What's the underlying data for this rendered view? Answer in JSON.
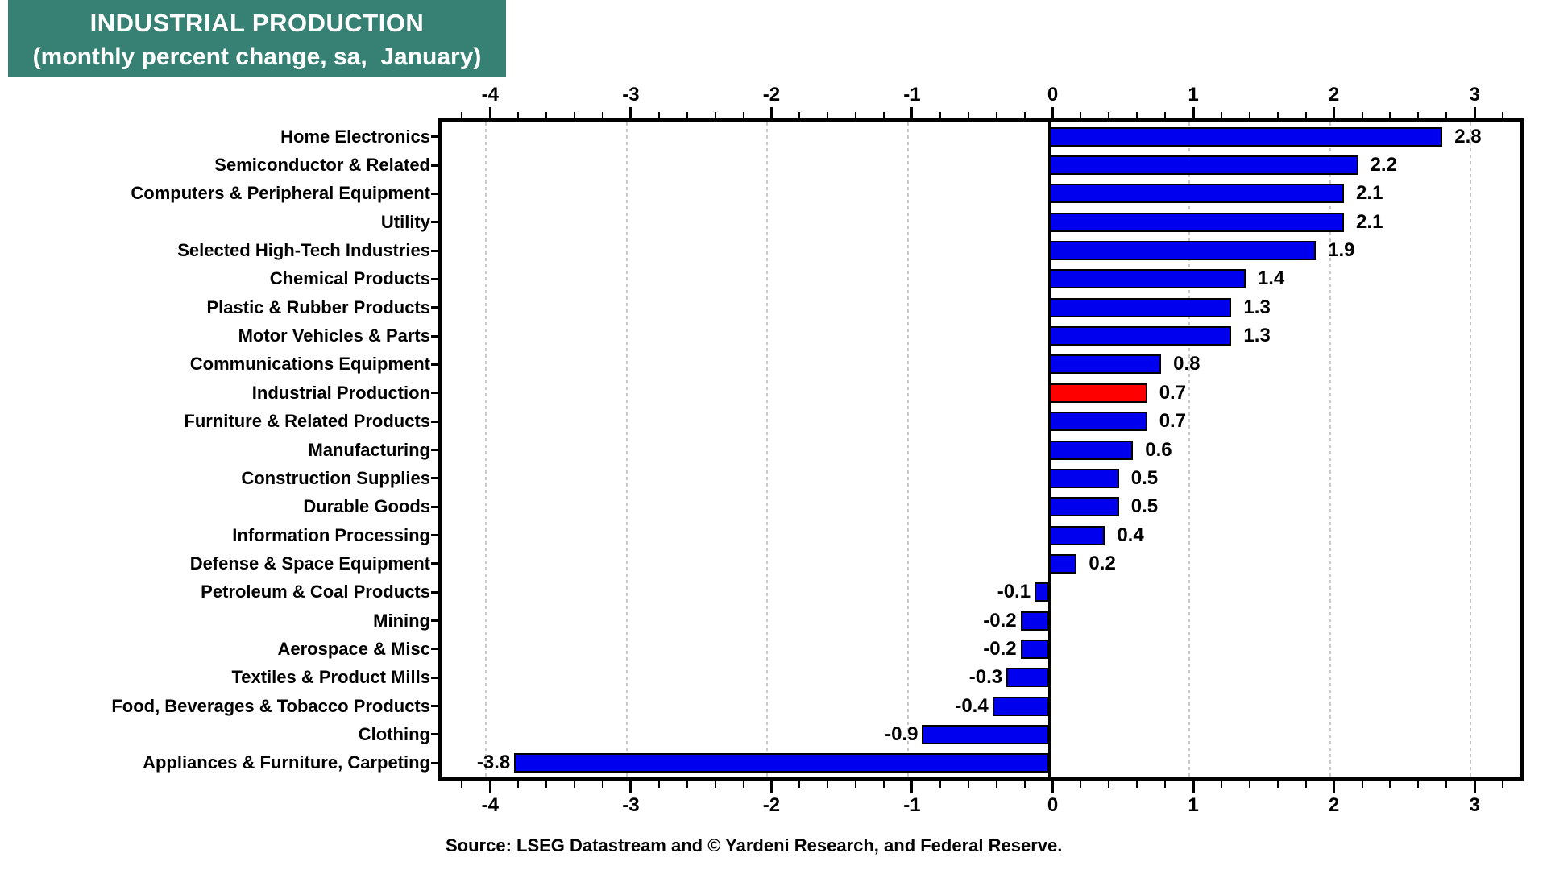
{
  "title": {
    "line1": "INDUSTRIAL PRODUCTION",
    "line2": "(monthly percent change, sa,  January)"
  },
  "source": "Source: LSEG Datastream and © Yardeni Research, and Federal Reserve.",
  "colors": {
    "title_bg": "#368173",
    "title_text": "#ffffff",
    "bar_blue": "#0000ee",
    "bar_highlight_red": "#ff0000",
    "bar_border": "#000000",
    "grid": "#c9c9c9",
    "axis": "#000000"
  },
  "chart_data": {
    "type": "bar",
    "orientation": "horizontal",
    "title": "INDUSTRIAL PRODUCTION",
    "subtitle": "(monthly percent change, sa,  January)",
    "categories": [
      "Home Electronics",
      "Semiconductor & Related",
      "Computers & Peripheral Equipment",
      "Utility",
      "Selected High-Tech Industries",
      "Chemical Products",
      "Plastic & Rubber Products",
      "Motor Vehicles & Parts",
      "Communications Equipment",
      "Industrial Production",
      "Furniture & Related Products",
      "Manufacturing",
      "Construction Supplies",
      "Durable Goods",
      "Information Processing",
      "Defense & Space Equipment",
      "Petroleum & Coal Products",
      "Mining",
      "Aerospace & Misc",
      "Textiles & Product Mills",
      "Food, Beverages & Tobacco Products",
      "Clothing",
      "Appliances & Furniture, Carpeting"
    ],
    "values": [
      2.8,
      2.2,
      2.1,
      2.1,
      1.9,
      1.4,
      1.3,
      1.3,
      0.8,
      0.7,
      0.7,
      0.6,
      0.5,
      0.5,
      0.4,
      0.2,
      -0.1,
      -0.2,
      -0.2,
      -0.3,
      -0.4,
      -0.9,
      -3.8
    ],
    "highlight_category": "Industrial Production",
    "highlight_index": 9,
    "xlim": [
      -4.34,
      3.32
    ],
    "x_ticks": [
      -4,
      -3,
      -2,
      -1,
      0,
      1,
      2,
      3
    ],
    "minor_tick_step": 0.2,
    "grid": "vertical-dotted-at-integers",
    "zero_line": "solid-black",
    "legend": "none",
    "value_label_format": "one decimal, outside bar end"
  }
}
